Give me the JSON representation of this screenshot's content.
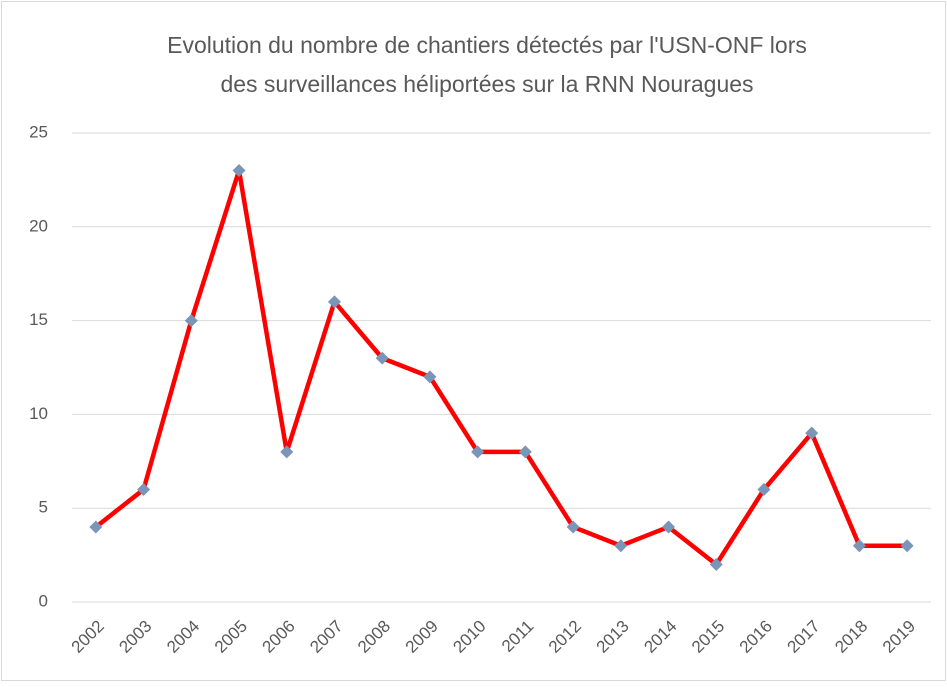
{
  "chart_data": {
    "type": "line",
    "title": [
      "Evolution du nombre de chantiers détectés par l'USN-ONF lors",
      "des surveillances héliportées sur la RNN Nouragues"
    ],
    "categories": [
      "2002",
      "2003",
      "2004",
      "2005",
      "2006",
      "2007",
      "2008",
      "2009",
      "2010",
      "2011",
      "2012",
      "2013",
      "2014",
      "2015",
      "2016",
      "2017",
      "2018",
      "2019"
    ],
    "values": [
      4,
      6,
      15,
      23,
      8,
      16,
      13,
      12,
      8,
      8,
      4,
      3,
      4,
      2,
      6,
      9,
      3,
      3
    ],
    "color": "#ff0000",
    "marker_color": "#7a95b8",
    "ylim": [
      0,
      25
    ],
    "yticks": [
      0,
      5,
      10,
      15,
      20,
      25
    ],
    "grid": true
  }
}
